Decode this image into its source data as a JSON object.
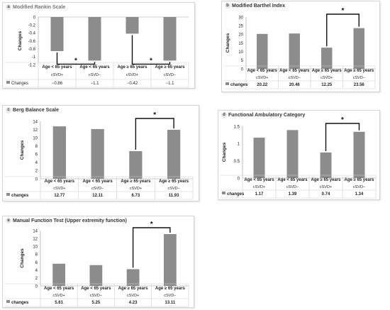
{
  "chart_data": [
    {
      "type": "bar",
      "panel_letter": "a",
      "title": "Modified Rankin Scale",
      "ylabel": "Changes",
      "ylim": [
        -1.2,
        0
      ],
      "yticks": [
        "0",
        "-0.2",
        "-0.4",
        "-0.6",
        "-0.8",
        "-1",
        "-1.2"
      ],
      "categories": [
        [
          "Age < 65 years",
          "cSVD+"
        ],
        [
          "Age < 65 years",
          "cSVD−"
        ],
        [
          "Age ≥ 65 years",
          "cSVD+"
        ],
        [
          "Age ≥ 65 years",
          "cSVD−"
        ]
      ],
      "series": [
        {
          "name": "Changes",
          "values": [
            -0.86,
            -1.1,
            -0.42,
            -1.1
          ]
        }
      ],
      "value_labels": [
        "−0.86",
        "−1.1",
        "−0.42",
        "−1.1"
      ],
      "significance": [
        [
          0,
          1
        ],
        [
          2,
          3
        ]
      ],
      "significance_label": "*"
    },
    {
      "type": "bar",
      "panel_letter": "b",
      "title": "Modified Barthel Index",
      "ylabel": "Changes",
      "ylim": [
        0,
        30
      ],
      "yticks": [
        "30",
        "25",
        "20",
        "15",
        "10",
        "5",
        "0"
      ],
      "categories": [
        [
          "Age < 65 years",
          "cSVD+"
        ],
        [
          "Age < 65 years",
          "cSVD−"
        ],
        [
          "Age ≥ 65 years",
          "cSVD+"
        ],
        [
          "Age ≥ 65 years",
          "cSVD−"
        ]
      ],
      "series": [
        {
          "name": "changes",
          "values": [
            20.22,
            20.46,
            12.25,
            23.56
          ]
        }
      ],
      "value_labels": [
        "20.22",
        "20.46",
        "12.25",
        "23.56"
      ],
      "significance": [
        [
          2,
          3
        ]
      ],
      "significance_label": "*"
    },
    {
      "type": "bar",
      "panel_letter": "c",
      "title": "Berg Balance Scale",
      "ylabel": "Changes",
      "ylim": [
        0,
        14
      ],
      "yticks": [
        "14",
        "12",
        "10",
        "8",
        "6",
        "4",
        "2",
        "0"
      ],
      "categories": [
        [
          "Age < 65 years",
          "cSVD+"
        ],
        [
          "Age < 65 years",
          "cSVD−"
        ],
        [
          "Age ≥ 65 years",
          "cSVD+"
        ],
        [
          "Age ≥ 65 years",
          "cSVD−"
        ]
      ],
      "series": [
        {
          "name": "changes",
          "values": [
            12.77,
            12.11,
            6.73,
            11.93
          ]
        }
      ],
      "value_labels": [
        "12.77",
        "12.11",
        "6.73",
        "11.93"
      ],
      "significance": [
        [
          2,
          3
        ]
      ],
      "significance_label": "*"
    },
    {
      "type": "bar",
      "panel_letter": "d",
      "title": "Functional Ambulatory Category",
      "ylabel": "Changes",
      "ylim": [
        0,
        1.5
      ],
      "yticks": [
        "1.5",
        "1",
        "0.5",
        "0"
      ],
      "categories": [
        [
          "Age < 65 years",
          "cSVD+"
        ],
        [
          "Age < 65 years",
          "cSVD−"
        ],
        [
          "Age ≥ 65 years",
          "cSVD+"
        ],
        [
          "Age ≥ 65 years",
          "cSVD−"
        ]
      ],
      "series": [
        {
          "name": "changes",
          "values": [
            1.17,
            1.39,
            0.74,
            1.34
          ]
        }
      ],
      "value_labels": [
        "1.17",
        "1.39",
        "0.74",
        "1.34"
      ],
      "significance": [
        [
          2,
          3
        ]
      ],
      "significance_label": "*"
    },
    {
      "type": "bar",
      "panel_letter": "e",
      "title": "Manual Function Test (Upper extremity function)",
      "ylabel": "Changes",
      "ylim": [
        0,
        14
      ],
      "yticks": [
        "14",
        "12",
        "10",
        "8",
        "6",
        "4",
        "2",
        "0"
      ],
      "categories": [
        [
          "Age < 65 years",
          "cSVD+"
        ],
        [
          "Age < 65 years",
          "cSVD−"
        ],
        [
          "Age ≥ 65 years",
          "cSVD+"
        ],
        [
          "Age ≥ 65 years",
          "cSVD−"
        ]
      ],
      "series": [
        {
          "name": "changes",
          "values": [
            5.61,
            5.25,
            4.23,
            13.11
          ]
        }
      ],
      "value_labels": [
        "5.61",
        "5.25",
        "4.23",
        "13.11"
      ],
      "significance": [
        [
          2,
          3
        ]
      ],
      "significance_label": "*"
    }
  ],
  "colors": {
    "bar": "#8c8c8c",
    "bracket": "#111111",
    "text": "#222222",
    "grid": "#cfcfcf"
  }
}
